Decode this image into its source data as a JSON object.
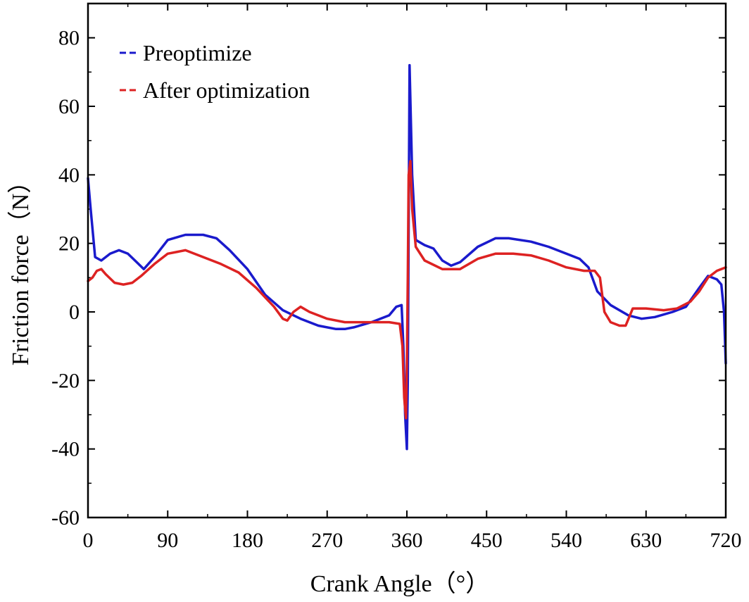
{
  "chart_data": {
    "type": "line",
    "xlabel": "Crank Angle（°）",
    "ylabel": "Friction force（N）",
    "xlim": [
      0,
      720
    ],
    "ylim": [
      -60,
      90
    ],
    "xticks": [
      0,
      90,
      180,
      270,
      360,
      450,
      540,
      630,
      720
    ],
    "yticks": [
      -60,
      -40,
      -20,
      0,
      20,
      40,
      60,
      80
    ],
    "grid": false,
    "legend_position": "top-left",
    "series": [
      {
        "name": "Preoptimize",
        "color": "#1a1acc",
        "x": [
          0,
          3,
          8,
          15,
          25,
          35,
          45,
          55,
          63,
          75,
          90,
          110,
          130,
          145,
          160,
          180,
          200,
          220,
          240,
          260,
          280,
          290,
          300,
          320,
          340,
          348,
          354,
          356,
          358,
          360,
          361,
          363,
          366,
          370,
          380,
          390,
          400,
          410,
          420,
          440,
          460,
          475,
          500,
          520,
          540,
          555,
          565,
          575,
          590,
          610,
          625,
          640,
          660,
          675,
          690,
          700,
          710,
          715,
          718,
          720
        ],
        "y": [
          39,
          30,
          16,
          15,
          17,
          18,
          17,
          14.5,
          12.5,
          16,
          21,
          22.5,
          22.5,
          21.5,
          18,
          12.5,
          5,
          0.5,
          -2,
          -4,
          -5,
          -5,
          -4.5,
          -3,
          -1,
          1.5,
          2,
          -10,
          -30,
          -40,
          -20,
          72,
          40,
          21,
          19.5,
          18.5,
          15,
          13.5,
          14.5,
          19,
          21.5,
          21.5,
          20.5,
          19,
          17,
          15.5,
          13,
          6,
          2,
          -1,
          -2,
          -1.5,
          0,
          1.5,
          7,
          10.5,
          9.5,
          8,
          0,
          -15
        ]
      },
      {
        "name": "After optimization",
        "color": "#dd2222",
        "x": [
          0,
          5,
          10,
          15,
          20,
          30,
          40,
          50,
          60,
          75,
          90,
          110,
          130,
          150,
          170,
          190,
          210,
          220,
          225,
          232,
          240,
          250,
          270,
          290,
          310,
          340,
          352,
          355,
          357,
          359,
          360,
          361,
          362,
          364,
          366,
          370,
          380,
          400,
          420,
          440,
          460,
          480,
          500,
          520,
          540,
          560,
          572,
          578,
          583,
          590,
          600,
          607,
          615,
          630,
          650,
          665,
          680,
          690,
          700,
          710,
          720
        ],
        "y": [
          9,
          10,
          12,
          12.5,
          11,
          8.5,
          8,
          8.5,
          10.5,
          14,
          17,
          18,
          16,
          14,
          11.5,
          7,
          1.5,
          -2,
          -2.5,
          0,
          1.5,
          0,
          -2,
          -3,
          -3,
          -3,
          -3.5,
          -10,
          -25,
          -31,
          -15,
          10,
          40,
          44,
          30,
          19,
          15,
          12.5,
          12.5,
          15.5,
          17,
          17,
          16.5,
          15,
          13,
          12,
          12,
          10,
          0,
          -3,
          -4,
          -4,
          1,
          1,
          0.5,
          1,
          3,
          6,
          10,
          12,
          13
        ]
      }
    ]
  }
}
